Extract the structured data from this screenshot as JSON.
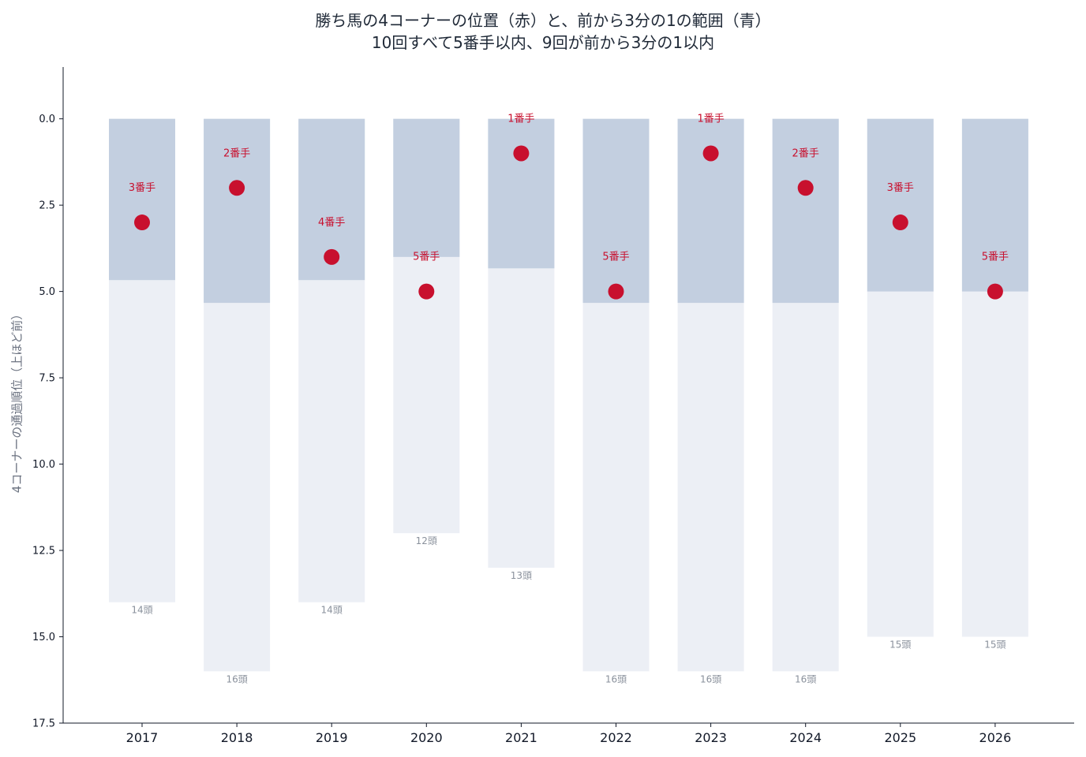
{
  "chart_data": {
    "type": "bar",
    "title": "勝ち馬の4コーナーの位置（赤）と、前から3分の1の範囲（青）",
    "subtitle": "10回すべて5番手以内、9回が前から3分の1以内",
    "ylabel": "4コーナーの通過順位（上ほど前）",
    "xlabel": "",
    "ylim": [
      17.5,
      -1.5
    ],
    "y_inverted": true,
    "yticks": [
      "0.0",
      "2.5",
      "5.0",
      "7.5",
      "10.0",
      "12.5",
      "15.0",
      "17.5"
    ],
    "ytick_values": [
      0,
      2.5,
      5,
      7.5,
      10,
      12.5,
      15,
      17.5
    ],
    "categories": [
      "2017",
      "2018",
      "2019",
      "2020",
      "2021",
      "2022",
      "2023",
      "2024",
      "2025",
      "2026"
    ],
    "series": [
      {
        "values": [
          14,
          16,
          14,
          12,
          13,
          16,
          16,
          16,
          15,
          15
        ]
      },
      {
        "values": [
          4.67,
          5.33,
          4.67,
          4.0,
          4.33,
          5.33,
          5.33,
          5.33,
          5.0,
          5.0
        ]
      },
      {
        "values": [
          3,
          2,
          4,
          5,
          1,
          5,
          1,
          2,
          3,
          5
        ]
      }
    ],
    "field_labels": [
      "14頭",
      "16頭",
      "14頭",
      "12頭",
      "13頭",
      "16頭",
      "16頭",
      "16頭",
      "15頭",
      "15頭"
    ],
    "position_labels": [
      "3番手",
      "2番手",
      "4番手",
      "5番手",
      "1番手",
      "5番手",
      "1番手",
      "2番手",
      "3番手",
      "5番手"
    ],
    "colors": {
      "field_bar": "#eceff5",
      "front_third_bar": "#c3cfe0",
      "winner_marker": "#c8102e",
      "field_label": "#8a919c",
      "axis": "#111827"
    },
    "grid": false,
    "legend": "none"
  }
}
